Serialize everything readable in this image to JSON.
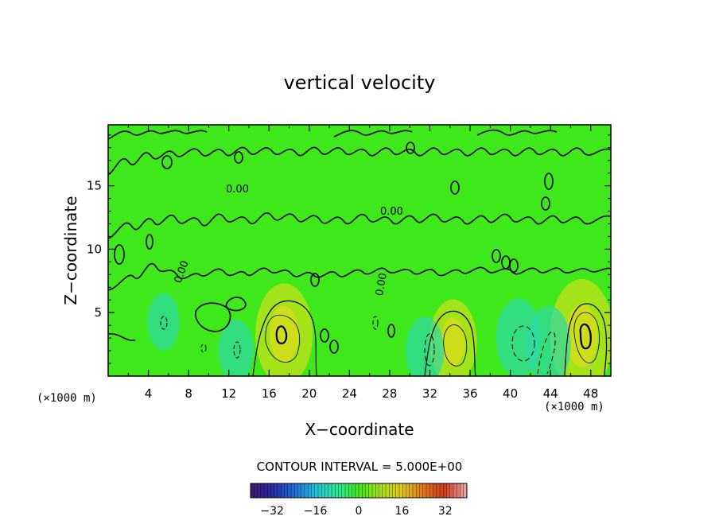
{
  "chart_data": {
    "type": "heatmap",
    "title": "vertical velocity",
    "xlabel": "X−coordinate",
    "ylabel": "Z−coordinate",
    "x_unit_left": "(×1000 m)",
    "x_unit_right": "(×1000 m)",
    "xlim": [
      0,
      50
    ],
    "ylim": [
      0,
      19.8
    ],
    "xticks": [
      4,
      8,
      12,
      16,
      20,
      24,
      28,
      32,
      36,
      40,
      44,
      48
    ],
    "yticks": [
      5,
      10,
      15
    ],
    "contour_interval_label": "CONTOUR INTERVAL = 5.000E+00",
    "contour_interval": 5.0,
    "contour_label_text": "0.00",
    "background_color": "#3ee81b",
    "colorbar": {
      "range": [
        -40,
        40
      ],
      "ticks": [
        "−32",
        "−16",
        "0",
        "16",
        "32"
      ],
      "tick_values": [
        -32,
        -16,
        0,
        16,
        32
      ],
      "colors": [
        "#3a1a6e",
        "#2a2aa8",
        "#1f6fd8",
        "#23c4d6",
        "#2ee89a",
        "#3ee81b",
        "#a8e01a",
        "#e0c81a",
        "#e07a1a",
        "#d03a1a",
        "#e8a0a0"
      ]
    },
    "features": [
      {
        "kind": "updraft",
        "x": 17.5,
        "z": 3.3,
        "peak": 10
      },
      {
        "kind": "updraft",
        "x": 34.3,
        "z": 2.7,
        "peak": 7
      },
      {
        "kind": "updraft",
        "x": 47.1,
        "z": 3.2,
        "peak": 12
      },
      {
        "kind": "downdraft",
        "x": 40.8,
        "z": 3.0,
        "peak": -6
      },
      {
        "kind": "downdraft",
        "x": 43.8,
        "z": 2.4,
        "peak": -6
      },
      {
        "kind": "downdraft",
        "x": 31.5,
        "z": 2.0,
        "peak": -4
      },
      {
        "kind": "downdraft",
        "x": 12.7,
        "z": 2.0,
        "peak": -3
      },
      {
        "kind": "downdraft",
        "x": 5.5,
        "z": 4.3,
        "peak": -2
      }
    ]
  }
}
